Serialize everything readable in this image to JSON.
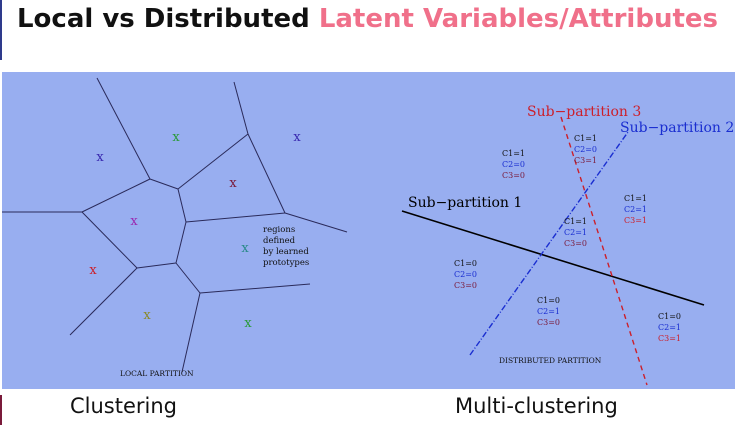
{
  "slide": {
    "title_part1": "Local vs Distributed",
    "title_part2": "Latent Variables/Attributes",
    "caption_left": "Clustering",
    "caption_right": "Multi-clustering",
    "colors": {
      "title_accent": "#f0708a",
      "panel": "#98aef0",
      "red": "#cc1f2a",
      "blue": "#1a2ed0",
      "black": "#000000",
      "green": "#2a9a3a",
      "purple": "#9a2ab0"
    }
  },
  "local": {
    "label": "LOCAL PARTITION",
    "annotation": [
      "regions",
      "defined",
      "by learned",
      "prototypes"
    ],
    "prototype_markers": [
      "x",
      "x",
      "x",
      "x",
      "x",
      "x",
      "x",
      "x",
      "x"
    ]
  },
  "distributed": {
    "label": "DISTRIBUTED PARTITION",
    "lines": {
      "sub1": "Sub−partition 1",
      "sub2": "Sub−partition 2",
      "sub3": "Sub−partition 3"
    },
    "regions": [
      [
        "C1=1",
        "C2=0",
        "C3=0"
      ],
      [
        "C1=1",
        "C2=0",
        "C3=1"
      ],
      [
        "C1=1",
        "C2=1",
        "C3=1"
      ],
      [
        "C1=1",
        "C2=1",
        "C3=0"
      ],
      [
        "C1=0",
        "C2=0",
        "C3=0"
      ],
      [
        "C1=0",
        "C2=1",
        "C3=0"
      ],
      [
        "C1=0",
        "C2=1",
        "C3=1"
      ]
    ]
  }
}
